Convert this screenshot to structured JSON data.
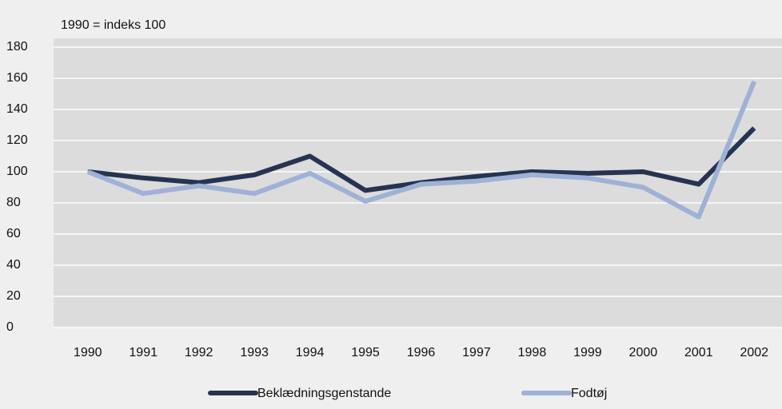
{
  "chart_data": {
    "type": "line",
    "annotation": "1990 = indeks 100",
    "categories": [
      "1990",
      "1991",
      "1992",
      "1993",
      "1994",
      "1995",
      "1996",
      "1997",
      "1998",
      "1999",
      "2000",
      "2001",
      "2002"
    ],
    "series": [
      {
        "name": "Beklædningsgenstande",
        "color": "#263452",
        "values": [
          100,
          96,
          93,
          98,
          110,
          88,
          93,
          97,
          100,
          99,
          100,
          92,
          128
        ]
      },
      {
        "name": "Fodtøj",
        "color": "#9fb1d6",
        "values": [
          100,
          86,
          91,
          86,
          99,
          81,
          92,
          94,
          98,
          96,
          90,
          71,
          158
        ]
      }
    ],
    "ylim": [
      0,
      180
    ],
    "yticks": [
      0,
      20,
      40,
      60,
      80,
      100,
      120,
      140,
      160,
      180
    ],
    "grid": true
  }
}
